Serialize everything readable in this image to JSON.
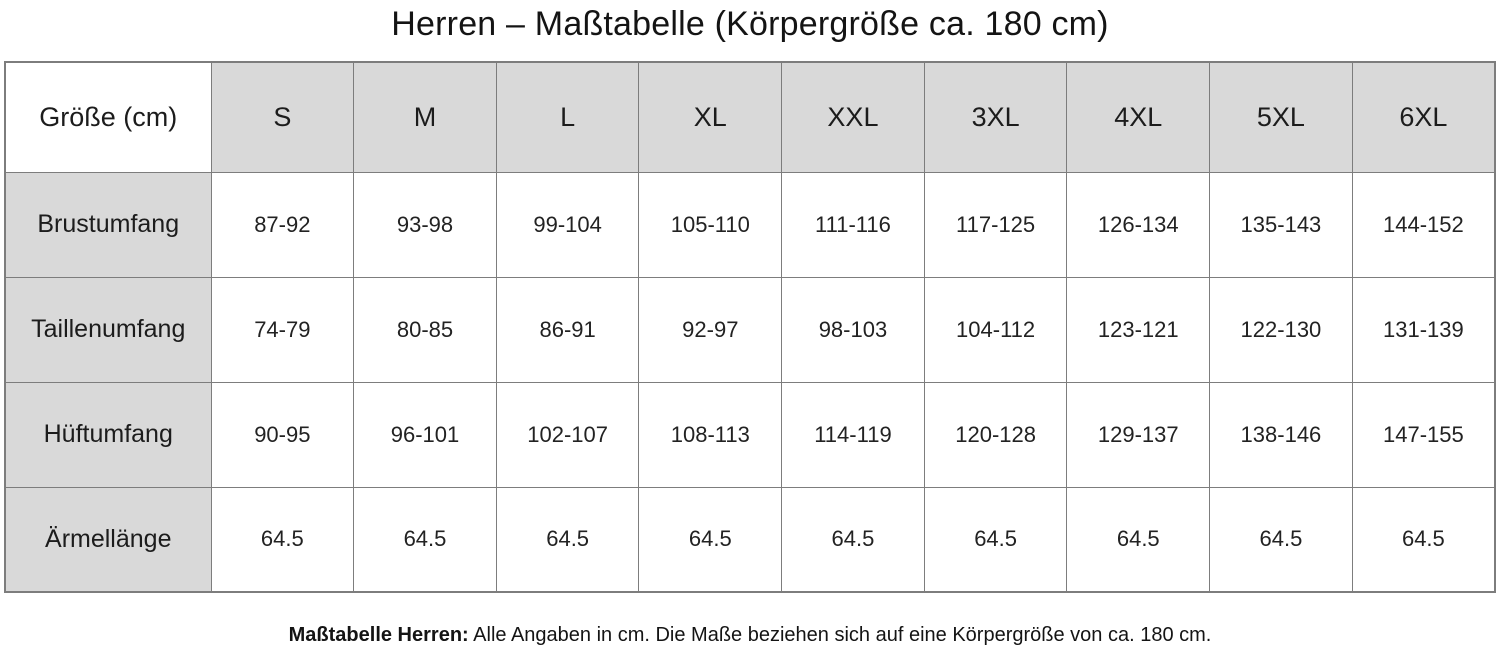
{
  "chart_data": {
    "type": "table",
    "title": "Herren – Maßtabelle (Körpergröße ca. 180 cm)",
    "corner_header": "Größe (cm)",
    "size_columns": [
      "S",
      "M",
      "L",
      "XL",
      "XXL",
      "3XL",
      "4XL",
      "5XL",
      "6XL"
    ],
    "rows": [
      {
        "label": "Brustumfang",
        "values": [
          "87-92",
          "93-98",
          "99-104",
          "105-110",
          "111-116",
          "117-125",
          "126-134",
          "135-143",
          "144-152"
        ]
      },
      {
        "label": "Taillenumfang",
        "values": [
          "74-79",
          "80-85",
          "86-91",
          "92-97",
          "98-103",
          "104-112",
          "123-121",
          "122-130",
          "131-139"
        ]
      },
      {
        "label": "Hüftumfang",
        "values": [
          "90-95",
          "96-101",
          "102-107",
          "108-113",
          "114-119",
          "120-128",
          "129-137",
          "138-146",
          "147-155"
        ]
      },
      {
        "label": "Ärmellänge",
        "values": [
          "64.5",
          "64.5",
          "64.5",
          "64.5",
          "64.5",
          "64.5",
          "64.5",
          "64.5",
          "64.5"
        ]
      }
    ],
    "footnote": {
      "label": "Maßtabelle Herren:",
      "text": "Alle Angaben in cm. Die Maße beziehen sich auf eine Körpergröße von ca. 180 cm."
    },
    "layout": {
      "grid": "full-borders",
      "header_background": "#d9d9d9",
      "row_label_background": "#d9d9d9"
    }
  },
  "colors": {
    "header_bg": "#d9d9d9",
    "cell_bg": "#ffffff",
    "border": "#7d7d7d",
    "text": "#1c1c1c"
  }
}
